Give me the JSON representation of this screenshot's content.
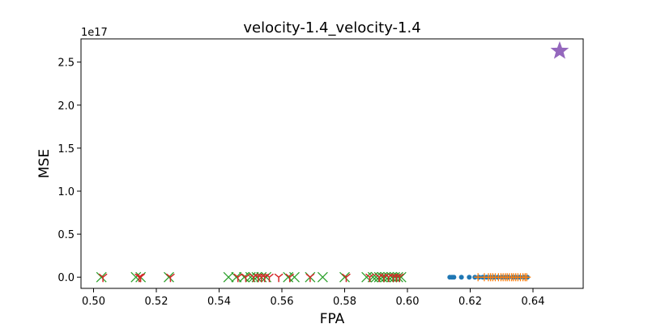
{
  "chart_data": {
    "type": "scatter",
    "title": "velocity-1.4_velocity-1.4",
    "xlabel": "FPA",
    "ylabel": "MSE",
    "y_offset_text": "1e17",
    "xlim": [
      0.496,
      0.656
    ],
    "ylim": [
      -0.13,
      2.77
    ],
    "x_ticks": [
      0.5,
      0.52,
      0.54,
      0.56,
      0.58,
      0.6,
      0.62,
      0.64
    ],
    "x_tick_labels": [
      "0.50",
      "0.52",
      "0.54",
      "0.56",
      "0.58",
      "0.60",
      "0.62",
      "0.64"
    ],
    "y_ticks": [
      0.0,
      0.5,
      1.0,
      1.5,
      2.0,
      2.5
    ],
    "y_tick_labels": [
      "0.0",
      "0.5",
      "1.0",
      "1.5",
      "2.0",
      "2.5"
    ],
    "grid": false,
    "legend": "none",
    "series": [
      {
        "marker": "circle",
        "color": "#1f77b4",
        "x": [
          0.6135,
          0.6142,
          0.6148,
          0.6172,
          0.6197,
          0.6215,
          0.6228,
          0.624,
          0.6252,
          0.6265,
          0.6275,
          0.6288,
          0.63,
          0.6312,
          0.6322,
          0.6335,
          0.6345,
          0.6358,
          0.637,
          0.6382
        ],
        "y": [
          0,
          0,
          0,
          0,
          0,
          0,
          0,
          0,
          0,
          0,
          0,
          0,
          0,
          0,
          0,
          0,
          0,
          0,
          0,
          0
        ]
      },
      {
        "marker": "plus",
        "color": "#ff7f0e",
        "x": [
          0.6225,
          0.6245,
          0.6258,
          0.6265,
          0.6272,
          0.628,
          0.629,
          0.6298,
          0.6305,
          0.6312,
          0.6318,
          0.6325,
          0.6332,
          0.6338,
          0.6345,
          0.6352,
          0.636,
          0.6368,
          0.6375,
          0.638
        ],
        "y": [
          0,
          0,
          0,
          0,
          0,
          0,
          0,
          0,
          0,
          0,
          0,
          0,
          0,
          0,
          0,
          0,
          0,
          0,
          0,
          0
        ]
      },
      {
        "marker": "x",
        "color": "#2ca02c",
        "x": [
          0.5025,
          0.5135,
          0.515,
          0.524,
          0.543,
          0.5455,
          0.548,
          0.55,
          0.551,
          0.552,
          0.5535,
          0.555,
          0.562,
          0.564,
          0.569,
          0.573,
          0.58,
          0.587,
          0.589,
          0.59,
          0.591,
          0.592,
          0.593,
          0.594,
          0.595,
          0.596,
          0.597,
          0.598
        ],
        "y": [
          0,
          0,
          0,
          0,
          0,
          0,
          0,
          0,
          0,
          0,
          0,
          0,
          0,
          0,
          0,
          0,
          0,
          0,
          0,
          0,
          0,
          0,
          0,
          0,
          0,
          0,
          0,
          0
        ]
      },
      {
        "marker": "tri_down",
        "color": "#d62728",
        "x": [
          0.503,
          0.5145,
          0.515,
          0.5245,
          0.546,
          0.5485,
          0.551,
          0.5525,
          0.5535,
          0.5545,
          0.556,
          0.559,
          0.5625,
          0.569,
          0.5805,
          0.588,
          0.591,
          0.5925,
          0.594,
          0.5955,
          0.5965,
          0.5975
        ],
        "y": [
          0,
          0,
          0,
          0,
          0,
          0,
          0,
          0,
          0,
          0,
          0,
          0,
          0,
          0,
          0,
          0,
          0,
          0,
          0,
          0,
          0,
          0
        ]
      },
      {
        "marker": "star",
        "color": "#9467bd",
        "x": [
          0.6485
        ],
        "y": [
          2.63
        ]
      }
    ]
  }
}
